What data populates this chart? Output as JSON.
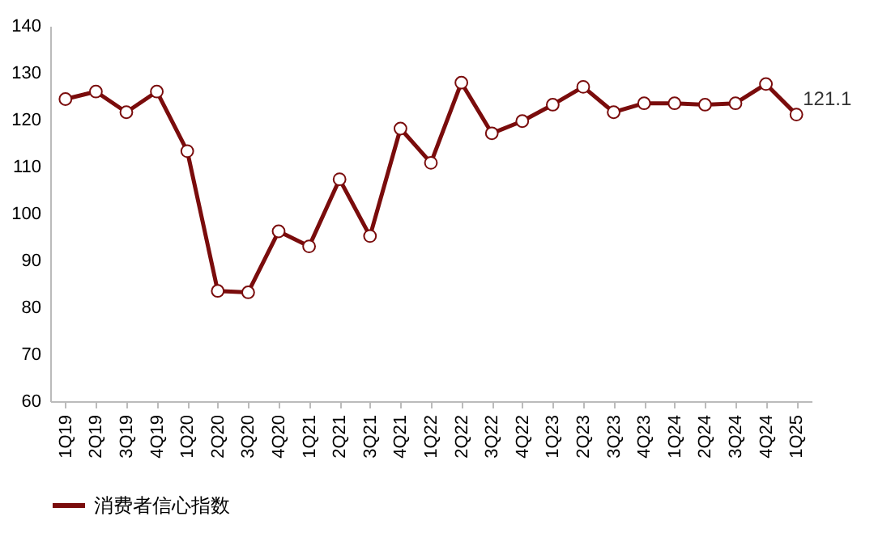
{
  "chart_data": {
    "type": "line",
    "categories": [
      "1Q19",
      "2Q19",
      "3Q19",
      "4Q19",
      "1Q20",
      "2Q20",
      "3Q20",
      "4Q20",
      "1Q21",
      "2Q21",
      "3Q21",
      "4Q21",
      "1Q22",
      "2Q22",
      "3Q22",
      "4Q22",
      "1Q23",
      "2Q23",
      "3Q23",
      "4Q23",
      "1Q24",
      "2Q24",
      "3Q24",
      "4Q24",
      "1Q25"
    ],
    "series": [
      {
        "name": "消费者信心指数",
        "color": "#7a0c0c",
        "values": [
          124.4,
          126,
          121.6,
          126,
          113.3,
          83.5,
          83.2,
          96.2,
          93,
          107.3,
          95.2,
          118.1,
          110.8,
          127.9,
          117.1,
          119.7,
          123.2,
          127,
          121.6,
          123.5,
          123.5,
          123.2,
          123.5,
          127.6,
          121.1
        ],
        "value_labels": [
          null,
          null,
          null,
          null,
          null,
          null,
          null,
          null,
          null,
          null,
          null,
          null,
          null,
          null,
          null,
          null,
          null,
          null,
          null,
          null,
          null,
          null,
          null,
          null,
          "121.1"
        ]
      }
    ],
    "ylim": [
      60,
      140
    ],
    "yticks": [
      60,
      70,
      80,
      90,
      100,
      110,
      120,
      130,
      140
    ],
    "grid": false,
    "legend": "bottom",
    "marker": "circle",
    "line_style": "solid"
  }
}
